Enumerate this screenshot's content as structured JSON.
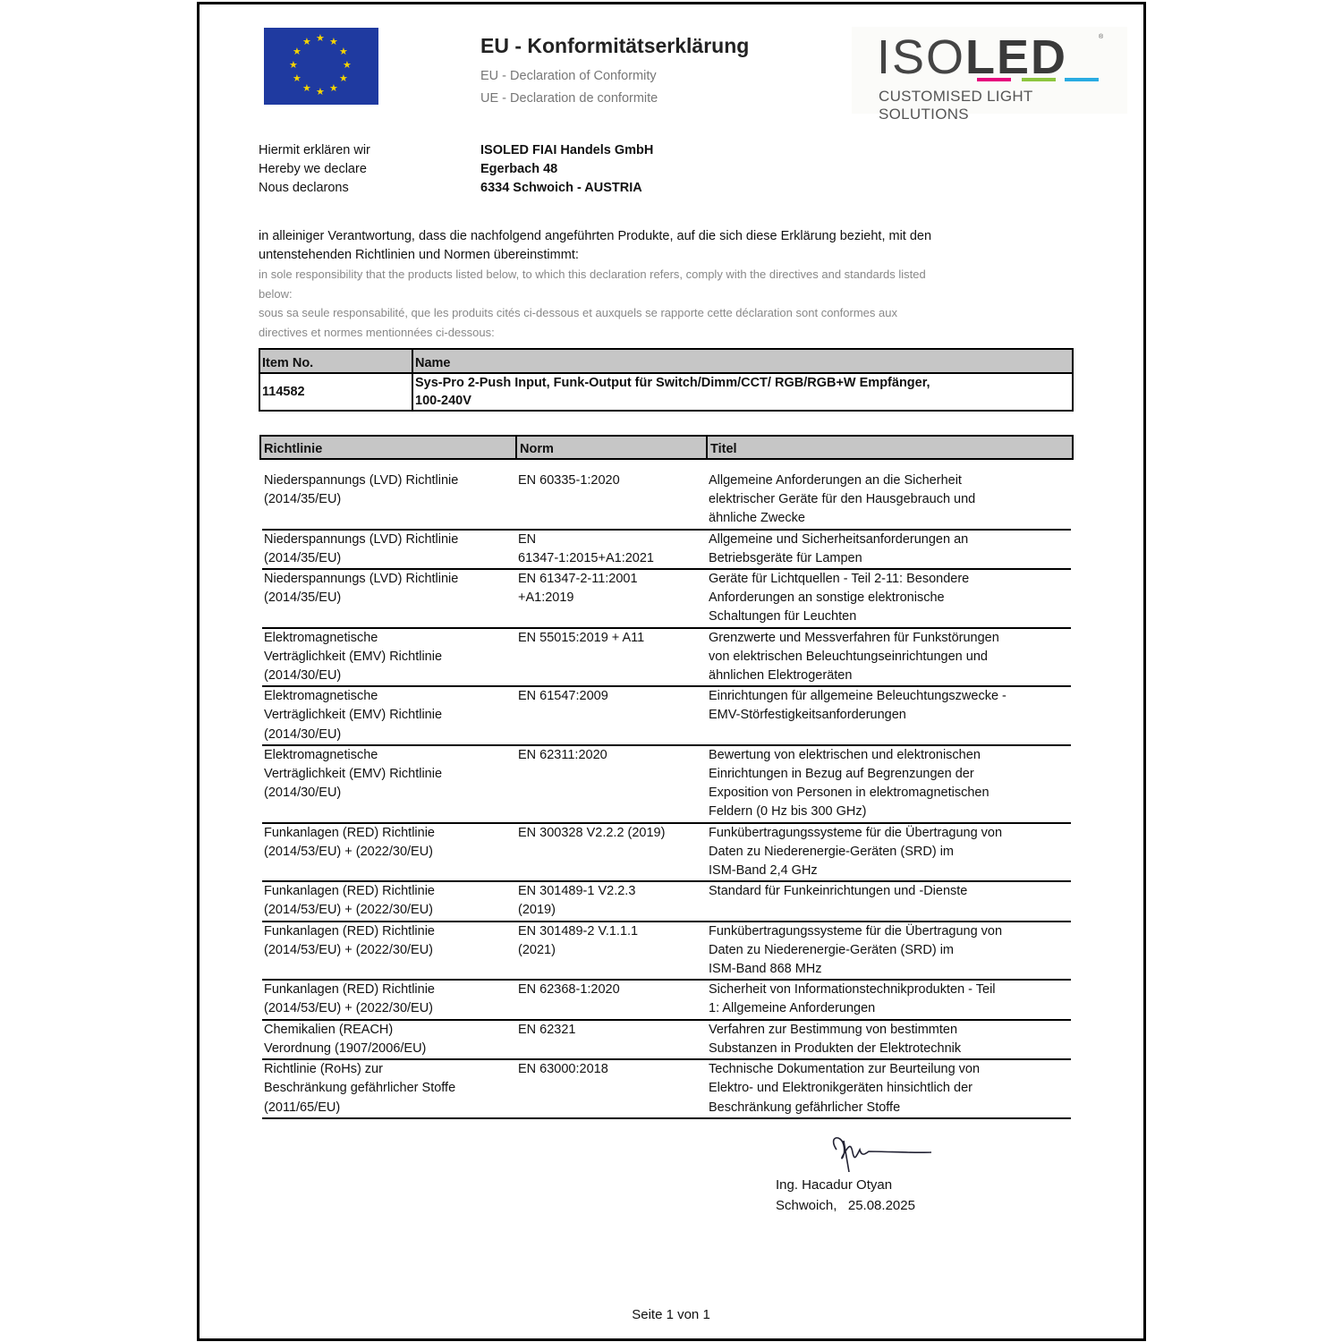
{
  "header": {
    "title": "EU - Konformitätserklärung",
    "subtitle_en": "EU - Declaration of Conformity",
    "subtitle_fr": "UE - Declaration de conformite"
  },
  "logo": {
    "text": "ISOLED",
    "tagline": "CUSTOMISED LIGHT SOLUTIONS",
    "colors": [
      "#e6007e",
      "#8dc63f",
      "#29abe2"
    ]
  },
  "declarant": {
    "labels": [
      "Hiermit erklären wir",
      "Hereby we declare",
      "Nous declarons"
    ],
    "company": "ISOLED FIAI Handels GmbH",
    "street": "Egerbach 48",
    "city": "6334 Schwoich - AUSTRIA"
  },
  "statement": {
    "de": "in alleiniger Verantwortung, dass die nachfolgend angeführten Produkte, auf die sich diese Erklärung bezieht, mit den untenstehenden Richtlinien und Normen übereinstimmt:",
    "en": "in sole responsibility that the products listed below, to which this declaration refers, comply with the directives and standards listed below:",
    "fr": "sous sa seule responsabilité, que les produits cités ci-dessous et auxquels se rapporte cette déclaration sont conformes aux directives et normes mentionnées ci-dessous:"
  },
  "product": {
    "headers": [
      "Item No.",
      "Name"
    ],
    "item_no": "114582",
    "name_lines": [
      "Sys-Pro 2-Push Input, Funk-Output für Switch/Dimm/CCT/ RGB/RGB+W Empfänger,",
      "100-240V"
    ]
  },
  "norms": {
    "headers": [
      "Richtlinie",
      "Norm",
      "Titel"
    ],
    "rows": [
      {
        "richtlinie": [
          "Niederspannungs (LVD) Richtlinie",
          "(2014/35/EU)"
        ],
        "norm": [
          "EN 60335-1:2020"
        ],
        "titel": [
          "Allgemeine Anforderungen an die Sicherheit",
          "elektrischer Geräte für den Hausgebrauch und",
          "ähnliche Zwecke"
        ]
      },
      {
        "richtlinie": [
          "Niederspannungs (LVD) Richtlinie",
          "(2014/35/EU)"
        ],
        "norm": [
          "EN",
          "61347-1:2015+A1:2021"
        ],
        "titel": [
          "Allgemeine und Sicherheitsanforderungen an",
          "Betriebsgeräte für Lampen"
        ]
      },
      {
        "richtlinie": [
          "Niederspannungs (LVD) Richtlinie",
          "(2014/35/EU)"
        ],
        "norm": [
          "EN 61347-2-11:2001",
          "+A1:2019"
        ],
        "titel": [
          "Geräte für Lichtquellen - Teil 2-11: Besondere",
          "Anforderungen an sonstige elektronische",
          "Schaltungen für Leuchten"
        ]
      },
      {
        "richtlinie": [
          "Elektromagnetische",
          "Verträglichkeit (EMV) Richtlinie",
          "(2014/30/EU)"
        ],
        "norm": [
          "EN 55015:2019 + A11"
        ],
        "titel": [
          "Grenzwerte und Messverfahren für Funkstörungen",
          "von elektrischen Beleuchtungseinrichtungen und",
          "ähnlichen Elektrogeräten"
        ]
      },
      {
        "richtlinie": [
          "Elektromagnetische",
          "Verträglichkeit (EMV) Richtlinie",
          "(2014/30/EU)"
        ],
        "norm": [
          "EN 61547:2009"
        ],
        "titel": [
          "Einrichtungen für allgemeine Beleuchtungszwecke -",
          "EMV-Störfestigkeitsanforderungen"
        ]
      },
      {
        "richtlinie": [
          "Elektromagnetische",
          "Verträglichkeit (EMV) Richtlinie",
          "(2014/30/EU)"
        ],
        "norm": [
          "EN 62311:2020"
        ],
        "titel": [
          "Bewertung von elektrischen und elektronischen",
          "Einrichtungen in Bezug auf Begrenzungen der",
          "Exposition von Personen in elektromagnetischen",
          "Feldern (0 Hz bis 300 GHz)"
        ]
      },
      {
        "richtlinie": [
          "Funkanlagen (RED) Richtlinie",
          "(2014/53/EU) + (2022/30/EU)"
        ],
        "norm": [
          "EN 300328 V2.2.2 (2019)"
        ],
        "titel": [
          "Funkübertragungssysteme für die Übertragung von",
          "Daten zu Niederenergie-Geräten (SRD) im",
          "ISM-Band 2,4 GHz"
        ]
      },
      {
        "richtlinie": [
          "Funkanlagen (RED) Richtlinie",
          "(2014/53/EU) + (2022/30/EU)"
        ],
        "norm": [
          "EN 301489-1 V2.2.3",
          "(2019)"
        ],
        "titel": [
          "Standard für Funkeinrichtungen und -Dienste"
        ]
      },
      {
        "richtlinie": [
          "Funkanlagen (RED) Richtlinie",
          "(2014/53/EU) + (2022/30/EU)"
        ],
        "norm": [
          "EN 301489-2 V.1.1.1",
          "(2021)"
        ],
        "titel": [
          "Funkübertragungssysteme für die Übertragung von",
          "Daten zu Niederenergie-Geräten (SRD) im",
          "ISM-Band 868 MHz"
        ]
      },
      {
        "richtlinie": [
          "Funkanlagen (RED) Richtlinie",
          "(2014/53/EU) + (2022/30/EU)"
        ],
        "norm": [
          "EN 62368-1:2020"
        ],
        "titel": [
          "Sicherheit von Informationstechnikprodukten - Teil",
          "1: Allgemeine Anforderungen"
        ]
      },
      {
        "richtlinie": [
          "Chemikalien (REACH)",
          "Verordnung (1907/2006/EU)"
        ],
        "norm": [
          "EN 62321"
        ],
        "titel": [
          "Verfahren zur Bestimmung von bestimmten",
          "Substanzen in Produkten der Elektrotechnik"
        ]
      },
      {
        "richtlinie": [
          "Richtlinie (RoHs) zur",
          "Beschränkung gefährlicher Stoffe",
          "(2011/65/EU)"
        ],
        "norm": [
          "EN 63000:2018"
        ],
        "titel": [
          "Technische Dokumentation zur Beurteilung von",
          "Elektro- und Elektronikgeräten hinsichtlich der",
          "Beschränkung gefährlicher Stoffe"
        ]
      }
    ]
  },
  "signature": {
    "name": "Ing. Hacadur Otyan",
    "place_date": "Schwoich,   25.08.2025"
  },
  "footer": {
    "page": "Seite 1 von 1"
  }
}
